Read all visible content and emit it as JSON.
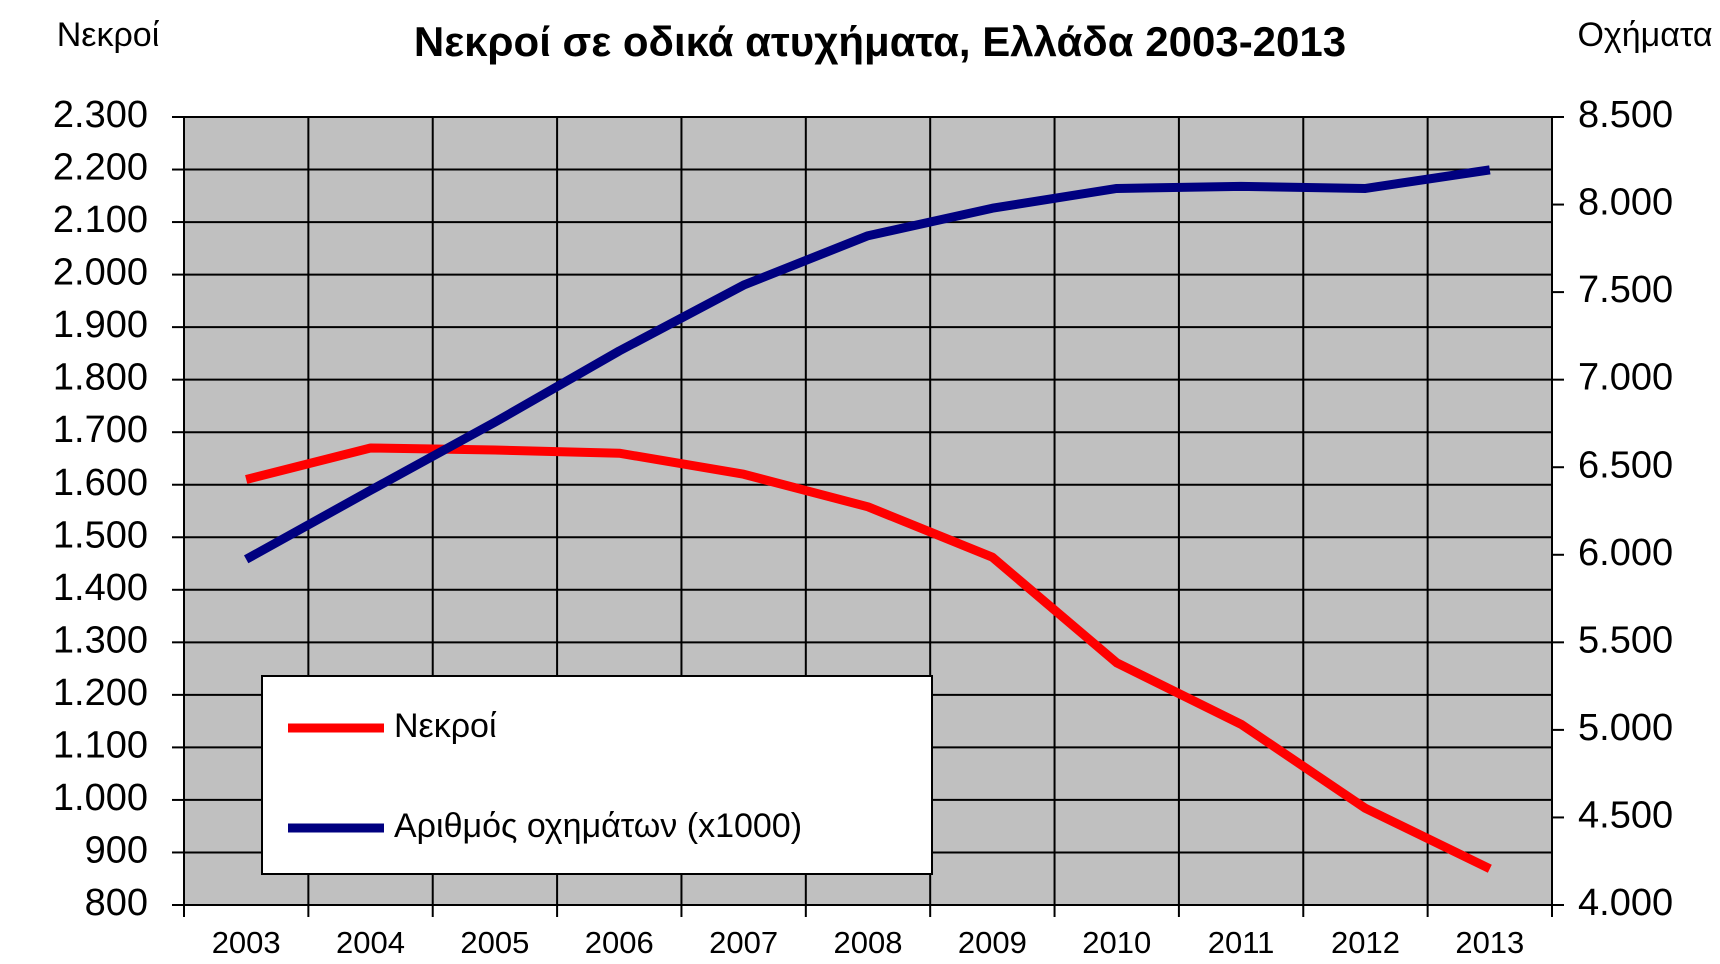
{
  "chart_data": {
    "type": "line",
    "title": "Νεκροί σε οδικά ατυχήματα, Ελλάδα 2003-2013",
    "y_label": "Νεκροί",
    "y2_label": "Οχήματα",
    "categories": [
      "2003",
      "2004",
      "2005",
      "2006",
      "2007",
      "2008",
      "2009",
      "2010",
      "2011",
      "2012",
      "2013"
    ],
    "series": [
      {
        "name": "Νεκροί",
        "color": "#ff0000",
        "values": [
          1610,
          1670,
          1666,
          1660,
          1620,
          1558,
          1462,
          1261,
          1144,
          984,
          869
        ]
      },
      {
        "name": "Αριθμός οχημάτων (x1000)",
        "color": "#000080",
        "axis": "y2",
        "values": [
          5974,
          6368,
          6757,
          7164,
          7540,
          7822,
          7979,
          8092,
          8104,
          8092,
          8198
        ]
      }
    ],
    "ylim": [
      800,
      2300
    ],
    "yticks": [
      {
        "value": 800,
        "label": "800"
      },
      {
        "value": 900,
        "label": "900"
      },
      {
        "value": 1000,
        "label": "1.000"
      },
      {
        "value": 1100,
        "label": "1.100"
      },
      {
        "value": 1200,
        "label": "1.200"
      },
      {
        "value": 1300,
        "label": "1.300"
      },
      {
        "value": 1400,
        "label": "1.400"
      },
      {
        "value": 1500,
        "label": "1.500"
      },
      {
        "value": 1600,
        "label": "1.600"
      },
      {
        "value": 1700,
        "label": "1.700"
      },
      {
        "value": 1800,
        "label": "1.800"
      },
      {
        "value": 1900,
        "label": "1.900"
      },
      {
        "value": 2000,
        "label": "2.000"
      },
      {
        "value": 2100,
        "label": "2.100"
      },
      {
        "value": 2200,
        "label": "2.200"
      },
      {
        "value": 2300,
        "label": "2.300"
      }
    ],
    "y2lim": [
      4000,
      8500
    ],
    "y2ticks": [
      {
        "value": 4000,
        "label": "4.000"
      },
      {
        "value": 4500,
        "label": "4.500"
      },
      {
        "value": 5000,
        "label": "5.000"
      },
      {
        "value": 5500,
        "label": "5.500"
      },
      {
        "value": 6000,
        "label": "6.000"
      },
      {
        "value": 6500,
        "label": "6.500"
      },
      {
        "value": 7000,
        "label": "7.000"
      },
      {
        "value": 7500,
        "label": "7.500"
      },
      {
        "value": 8000,
        "label": "8.000"
      },
      {
        "value": 8500,
        "label": "8.500"
      }
    ],
    "grid": true,
    "legend": "lower left"
  }
}
